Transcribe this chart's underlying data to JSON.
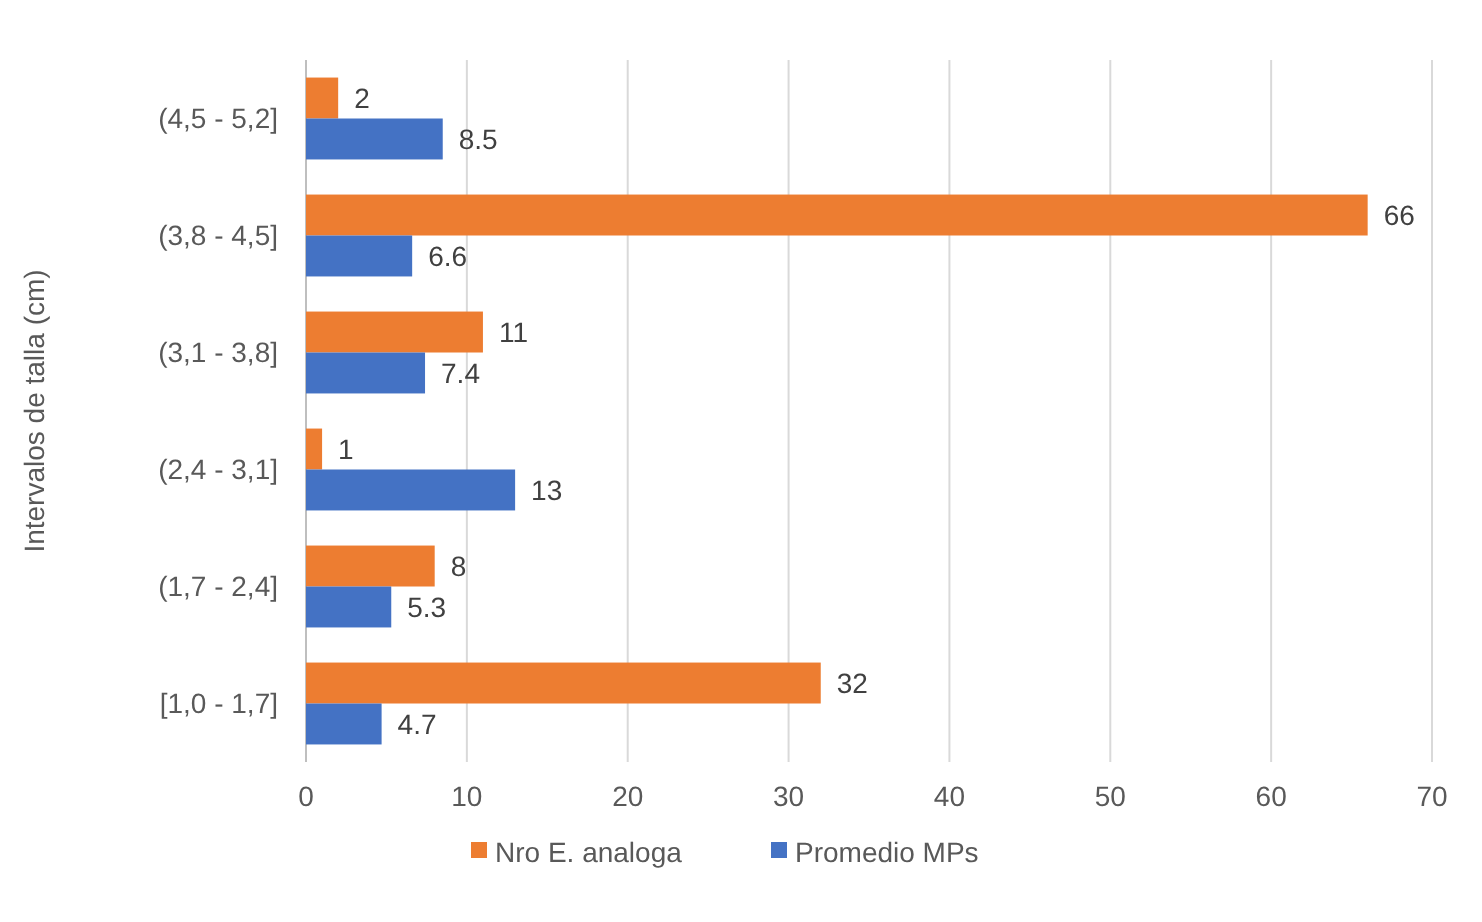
{
  "chart_data": {
    "type": "bar",
    "orientation": "horizontal",
    "ylabel": "Intervalos de talla (cm)",
    "categories": [
      "(4,5 - 5,2]",
      "(3,8 - 4,5]",
      "(3,1 - 3,8]",
      "(2,4 - 3,1]",
      "(1,7 - 2,4]",
      "[1,0 - 1,7]"
    ],
    "series": [
      {
        "name": "Nro E. analoga",
        "color": "#ed7d31",
        "values": [
          2,
          66,
          11,
          1,
          8,
          32
        ]
      },
      {
        "name": "Promedio MPs",
        "color": "#4472c4",
        "values": [
          8.5,
          6.6,
          7.4,
          13,
          5.3,
          4.7
        ]
      }
    ],
    "xlim": [
      0,
      70
    ],
    "xticks": [
      0,
      10,
      20,
      30,
      40,
      50,
      60,
      70
    ],
    "grid": "x",
    "legend": "bottom",
    "data_labels": true
  }
}
